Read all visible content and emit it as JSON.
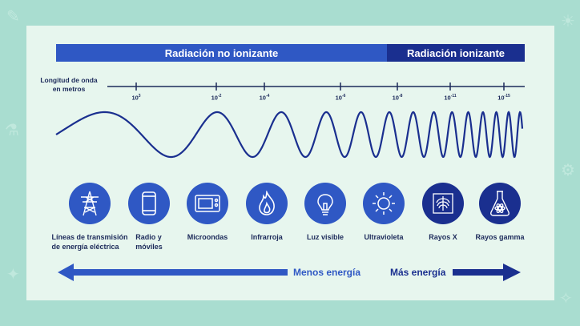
{
  "bands": {
    "non_ionizing": "Radiación no ionizante",
    "ionizing": "Radiación ionizante"
  },
  "axis": {
    "title_line1": "Longitud de onda",
    "title_line2": "en metros",
    "ticks": [
      {
        "base": "10",
        "exp": "3"
      },
      {
        "base": "10",
        "exp": "-2"
      },
      {
        "base": "10",
        "exp": "-4"
      },
      {
        "base": "10",
        "exp": "-6"
      },
      {
        "base": "10",
        "exp": "-8"
      },
      {
        "base": "10",
        "exp": "-11"
      },
      {
        "base": "10",
        "exp": "-15"
      }
    ]
  },
  "categories": [
    {
      "line1": "Líneas de transmisión",
      "line2": "de energía eléctrica",
      "icon": "power-tower-icon"
    },
    {
      "line1": "Radio y",
      "line2": "móviles",
      "icon": "mobile-phone-icon"
    },
    {
      "line1": "Microondas",
      "line2": "",
      "icon": "microwave-icon"
    },
    {
      "line1": "Infrarroja",
      "line2": "",
      "icon": "flame-icon"
    },
    {
      "line1": "Luz visible",
      "line2": "",
      "icon": "light-bulb-icon"
    },
    {
      "line1": "Ultravioleta",
      "line2": "",
      "icon": "sun-icon"
    },
    {
      "line1": "Rayos X",
      "line2": "",
      "icon": "xray-icon"
    },
    {
      "line1": "Rayos gamma",
      "line2": "",
      "icon": "radioactive-flask-icon"
    }
  ],
  "energy": {
    "low": "Menos energía",
    "high": "Más energía"
  },
  "colors": {
    "blue": "#2f58c4",
    "dark_blue": "#1a2f8f",
    "text": "#1c2a5a"
  }
}
